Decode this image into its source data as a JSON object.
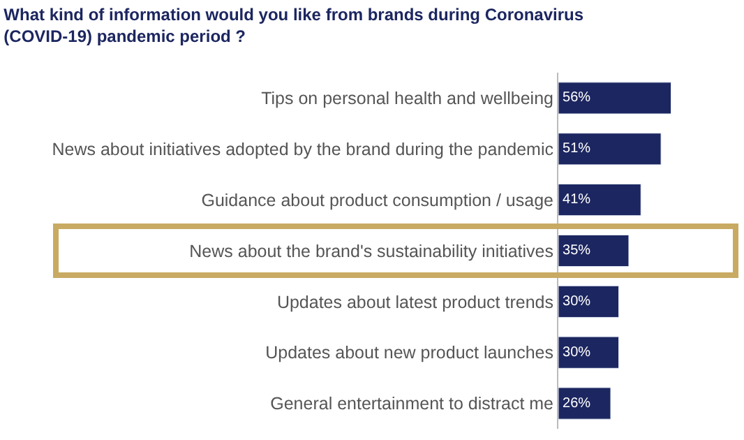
{
  "chart_data": {
    "type": "bar",
    "orientation": "horizontal",
    "title": "What kind of information would you like from brands during Coronavirus (COVID-19) pandemic period ?",
    "categories": [
      "Tips on personal health and wellbeing",
      "News about initiatives adopted by the brand during the pandemic",
      "Guidance about product consumption / usage",
      "News about the brand's sustainability initiatives",
      "Updates about latest product trends",
      "Updates about new product launches",
      "General entertainment to distract me"
    ],
    "values": [
      56,
      51,
      41,
      35,
      30,
      30,
      26
    ],
    "value_labels": [
      "56%",
      "51%",
      "41%",
      "35%",
      "30%",
      "30%",
      "26%"
    ],
    "color": "#1c2660",
    "legend": false
  }
}
